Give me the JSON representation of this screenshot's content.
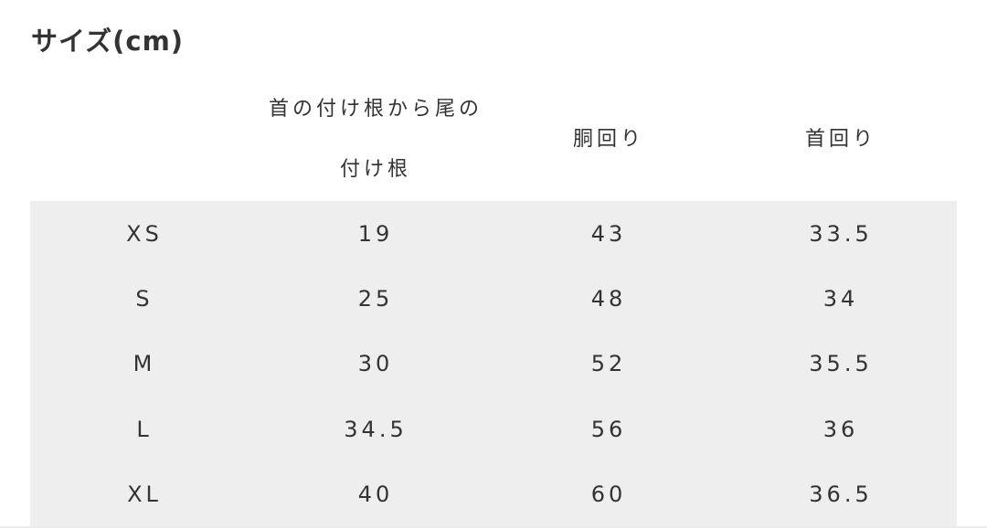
{
  "title": "サイズ(cm)",
  "headers": [
    "",
    "首の付け根から尾の付け根",
    "胴回り",
    "首回り"
  ],
  "rows": [
    [
      "XS",
      "19",
      "43",
      "33.5"
    ],
    [
      "S",
      "25",
      "48",
      "34"
    ],
    [
      "M",
      "30",
      "52",
      "35.5"
    ],
    [
      "L",
      "34.5",
      "56",
      "36"
    ],
    [
      "XL",
      "40",
      "60",
      "36.5"
    ]
  ]
}
